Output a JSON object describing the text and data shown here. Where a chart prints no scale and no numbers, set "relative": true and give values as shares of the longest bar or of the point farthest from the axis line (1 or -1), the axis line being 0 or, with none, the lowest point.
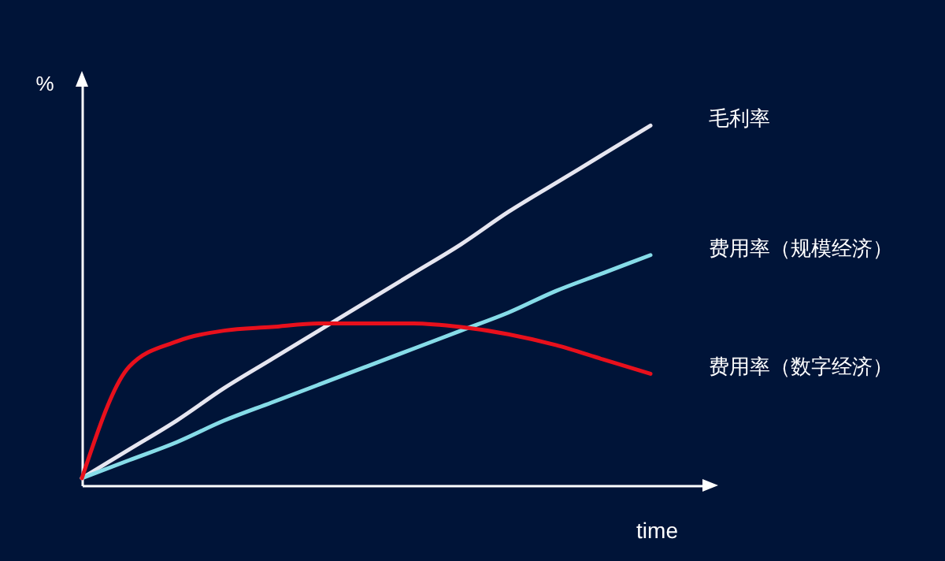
{
  "chart_data": {
    "type": "line",
    "xlabel": "time",
    "ylabel": "%",
    "relative": true,
    "categories": [
      null,
      null,
      null,
      null,
      null,
      null,
      null,
      null,
      null,
      null,
      null,
      null,
      null
    ],
    "series": [
      {
        "name": "毛利率",
        "color": "#e6e6f0",
        "values": [
          0.02,
          0.1,
          0.18,
          0.27,
          0.35,
          0.43,
          0.51,
          0.59,
          0.67,
          0.76,
          0.84,
          0.92,
          1
        ]
      },
      {
        "name": "费用率（规模经济）",
        "color": "#86dce8",
        "values": [
          0.02,
          0.07,
          0.12,
          0.18,
          0.23,
          0.28,
          0.33,
          0.38,
          0.43,
          0.48,
          0.54,
          0.59,
          0.64
        ]
      },
      {
        "name": "费用率（数字经济）",
        "color": "#e8101c",
        "values": [
          0.02,
          0.33,
          0.4,
          0.43,
          0.44,
          0.45,
          0.45,
          0.45,
          0.44,
          0.42,
          0.39,
          0.35,
          0.31
        ]
      }
    ]
  }
}
